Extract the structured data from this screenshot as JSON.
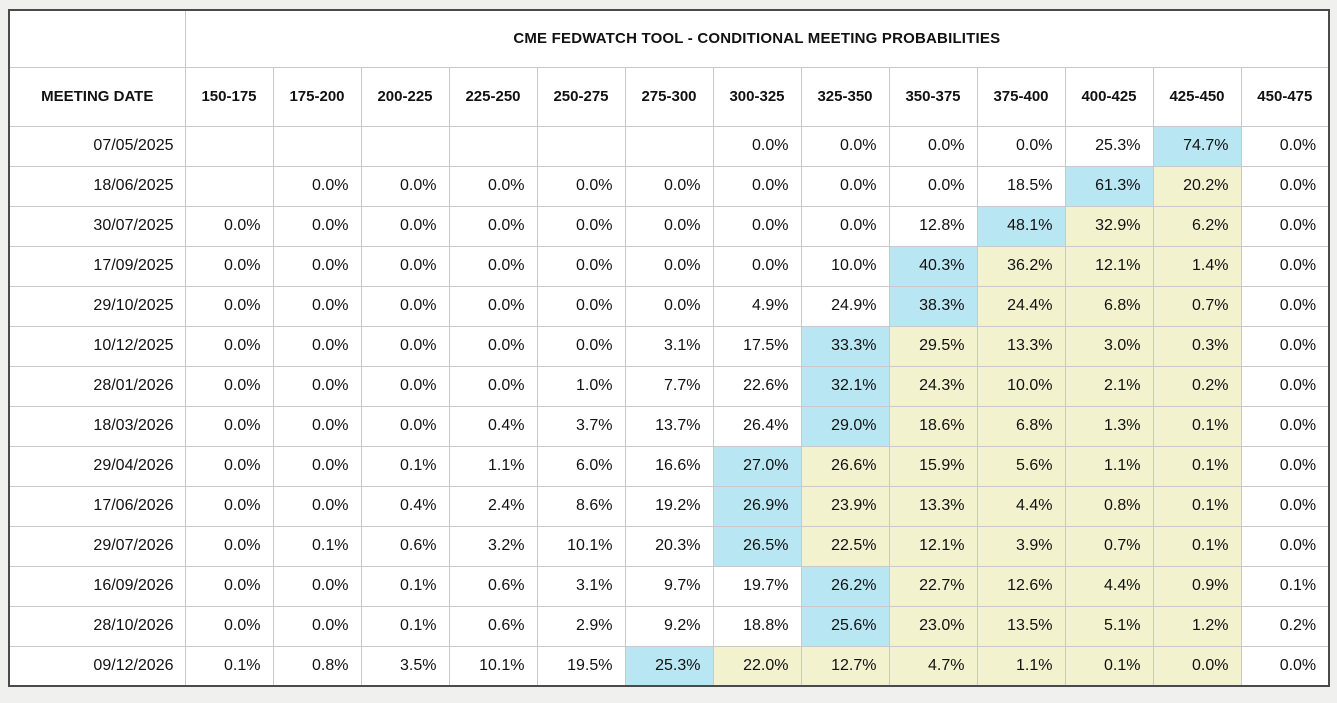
{
  "colors": {
    "max_highlight": "#b8e6f2",
    "trail_highlight": "#f2f2cf"
  },
  "chart_data": {
    "type": "table",
    "title": "CME FEDWATCH TOOL - CONDITIONAL MEETING PROBABILITIES",
    "row_header_label": "MEETING DATE",
    "columns": [
      "150-175",
      "175-200",
      "200-225",
      "225-250",
      "250-275",
      "275-300",
      "300-325",
      "325-350",
      "350-375",
      "375-400",
      "400-425",
      "425-450",
      "450-475"
    ],
    "rows": [
      {
        "date": "07/05/2025",
        "values": [
          "",
          "",
          "",
          "",
          "",
          "",
          "0.0%",
          "0.0%",
          "0.0%",
          "0.0%",
          "25.3%",
          "74.7%",
          "0.0%"
        ],
        "max_col": 11,
        "trail_cols": []
      },
      {
        "date": "18/06/2025",
        "values": [
          "",
          "0.0%",
          "0.0%",
          "0.0%",
          "0.0%",
          "0.0%",
          "0.0%",
          "0.0%",
          "0.0%",
          "18.5%",
          "61.3%",
          "20.2%",
          "0.0%"
        ],
        "max_col": 10,
        "trail_cols": [
          11
        ]
      },
      {
        "date": "30/07/2025",
        "values": [
          "0.0%",
          "0.0%",
          "0.0%",
          "0.0%",
          "0.0%",
          "0.0%",
          "0.0%",
          "0.0%",
          "12.8%",
          "48.1%",
          "32.9%",
          "6.2%",
          "0.0%"
        ],
        "max_col": 9,
        "trail_cols": [
          10,
          11
        ]
      },
      {
        "date": "17/09/2025",
        "values": [
          "0.0%",
          "0.0%",
          "0.0%",
          "0.0%",
          "0.0%",
          "0.0%",
          "0.0%",
          "10.0%",
          "40.3%",
          "36.2%",
          "12.1%",
          "1.4%",
          "0.0%"
        ],
        "max_col": 8,
        "trail_cols": [
          9,
          10,
          11
        ]
      },
      {
        "date": "29/10/2025",
        "values": [
          "0.0%",
          "0.0%",
          "0.0%",
          "0.0%",
          "0.0%",
          "0.0%",
          "4.9%",
          "24.9%",
          "38.3%",
          "24.4%",
          "6.8%",
          "0.7%",
          "0.0%"
        ],
        "max_col": 8,
        "trail_cols": [
          9,
          10,
          11
        ]
      },
      {
        "date": "10/12/2025",
        "values": [
          "0.0%",
          "0.0%",
          "0.0%",
          "0.0%",
          "0.0%",
          "3.1%",
          "17.5%",
          "33.3%",
          "29.5%",
          "13.3%",
          "3.0%",
          "0.3%",
          "0.0%"
        ],
        "max_col": 7,
        "trail_cols": [
          8,
          9,
          10,
          11
        ]
      },
      {
        "date": "28/01/2026",
        "values": [
          "0.0%",
          "0.0%",
          "0.0%",
          "0.0%",
          "1.0%",
          "7.7%",
          "22.6%",
          "32.1%",
          "24.3%",
          "10.0%",
          "2.1%",
          "0.2%",
          "0.0%"
        ],
        "max_col": 7,
        "trail_cols": [
          8,
          9,
          10,
          11
        ]
      },
      {
        "date": "18/03/2026",
        "values": [
          "0.0%",
          "0.0%",
          "0.0%",
          "0.4%",
          "3.7%",
          "13.7%",
          "26.4%",
          "29.0%",
          "18.6%",
          "6.8%",
          "1.3%",
          "0.1%",
          "0.0%"
        ],
        "max_col": 7,
        "trail_cols": [
          8,
          9,
          10,
          11
        ]
      },
      {
        "date": "29/04/2026",
        "values": [
          "0.0%",
          "0.0%",
          "0.1%",
          "1.1%",
          "6.0%",
          "16.6%",
          "27.0%",
          "26.6%",
          "15.9%",
          "5.6%",
          "1.1%",
          "0.1%",
          "0.0%"
        ],
        "max_col": 6,
        "trail_cols": [
          7,
          8,
          9,
          10,
          11
        ]
      },
      {
        "date": "17/06/2026",
        "values": [
          "0.0%",
          "0.0%",
          "0.4%",
          "2.4%",
          "8.6%",
          "19.2%",
          "26.9%",
          "23.9%",
          "13.3%",
          "4.4%",
          "0.8%",
          "0.1%",
          "0.0%"
        ],
        "max_col": 6,
        "trail_cols": [
          7,
          8,
          9,
          10,
          11
        ]
      },
      {
        "date": "29/07/2026",
        "values": [
          "0.0%",
          "0.1%",
          "0.6%",
          "3.2%",
          "10.1%",
          "20.3%",
          "26.5%",
          "22.5%",
          "12.1%",
          "3.9%",
          "0.7%",
          "0.1%",
          "0.0%"
        ],
        "max_col": 6,
        "trail_cols": [
          7,
          8,
          9,
          10,
          11
        ]
      },
      {
        "date": "16/09/2026",
        "values": [
          "0.0%",
          "0.0%",
          "0.1%",
          "0.6%",
          "3.1%",
          "9.7%",
          "19.7%",
          "26.2%",
          "22.7%",
          "12.6%",
          "4.4%",
          "0.9%",
          "0.1%"
        ],
        "max_col": 7,
        "trail_cols": [
          8,
          9,
          10,
          11
        ]
      },
      {
        "date": "28/10/2026",
        "values": [
          "0.0%",
          "0.0%",
          "0.1%",
          "0.6%",
          "2.9%",
          "9.2%",
          "18.8%",
          "25.6%",
          "23.0%",
          "13.5%",
          "5.1%",
          "1.2%",
          "0.2%"
        ],
        "max_col": 7,
        "trail_cols": [
          8,
          9,
          10,
          11
        ]
      },
      {
        "date": "09/12/2026",
        "values": [
          "0.1%",
          "0.8%",
          "3.5%",
          "10.1%",
          "19.5%",
          "25.3%",
          "22.0%",
          "12.7%",
          "4.7%",
          "1.1%",
          "0.1%",
          "0.0%",
          "0.0%"
        ],
        "max_col": 5,
        "trail_cols": [
          6,
          7,
          8,
          9,
          10,
          11
        ]
      }
    ]
  }
}
